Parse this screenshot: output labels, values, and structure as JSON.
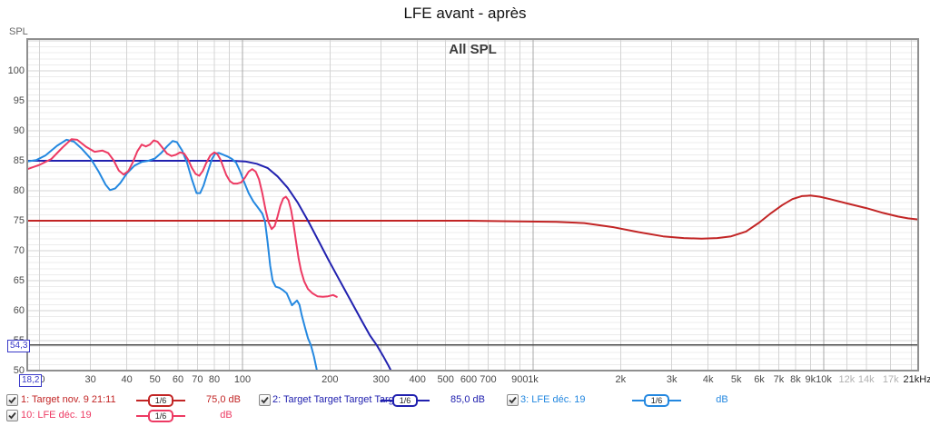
{
  "window": {
    "title": "LFE avant - après"
  },
  "plot": {
    "title": "All SPL",
    "y_axis_label": "SPL"
  },
  "cursor": {
    "freq_label": "18,2",
    "spl_label": "54,3",
    "freq_hz": 18.2,
    "spl_db": 54.3
  },
  "axes": {
    "x": {
      "scale": "log",
      "min_hz": 18.2,
      "max_hz": 21380,
      "gridlines_hz": [
        20,
        30,
        40,
        50,
        60,
        70,
        80,
        90,
        100,
        200,
        300,
        400,
        500,
        600,
        700,
        800,
        900,
        1000,
        2000,
        3000,
        4000,
        5000,
        6000,
        7000,
        8000,
        9000,
        10000,
        12000,
        14000,
        17000,
        20000
      ],
      "emphasis_hz": [
        100,
        1000,
        10000
      ],
      "ticks": [
        {
          "hz": 20,
          "label": "20",
          "shade": "normal"
        },
        {
          "hz": 30,
          "label": "30",
          "shade": "normal"
        },
        {
          "hz": 40,
          "label": "40",
          "shade": "normal"
        },
        {
          "hz": 50,
          "label": "50",
          "shade": "normal"
        },
        {
          "hz": 60,
          "label": "60",
          "shade": "normal"
        },
        {
          "hz": 70,
          "label": "70",
          "shade": "normal"
        },
        {
          "hz": 80,
          "label": "80",
          "shade": "normal"
        },
        {
          "hz": 100,
          "label": "100",
          "shade": "normal"
        },
        {
          "hz": 200,
          "label": "200",
          "shade": "normal"
        },
        {
          "hz": 300,
          "label": "300",
          "shade": "normal"
        },
        {
          "hz": 400,
          "label": "400",
          "shade": "normal"
        },
        {
          "hz": 500,
          "label": "500",
          "shade": "normal"
        },
        {
          "hz": 600,
          "label": "600",
          "shade": "normal"
        },
        {
          "hz": 700,
          "label": "700",
          "shade": "normal"
        },
        {
          "hz": 900,
          "label": "900",
          "shade": "normal"
        },
        {
          "hz": 1000,
          "label": "1k",
          "shade": "normal"
        },
        {
          "hz": 2000,
          "label": "2k",
          "shade": "normal"
        },
        {
          "hz": 3000,
          "label": "3k",
          "shade": "normal"
        },
        {
          "hz": 4000,
          "label": "4k",
          "shade": "normal"
        },
        {
          "hz": 5000,
          "label": "5k",
          "shade": "normal"
        },
        {
          "hz": 6000,
          "label": "6k",
          "shade": "normal"
        },
        {
          "hz": 7000,
          "label": "7k",
          "shade": "normal"
        },
        {
          "hz": 8000,
          "label": "8k",
          "shade": "normal"
        },
        {
          "hz": 9000,
          "label": "9k",
          "shade": "normal"
        },
        {
          "hz": 10000,
          "label": "10k",
          "shade": "normal"
        },
        {
          "hz": 12000,
          "label": "12k",
          "shade": "light"
        },
        {
          "hz": 14000,
          "label": "14k",
          "shade": "light"
        },
        {
          "hz": 17000,
          "label": "17k",
          "shade": "light"
        },
        {
          "hz": 21000,
          "label": "21kHz",
          "shade": "dark"
        }
      ]
    },
    "y": {
      "min_db": 50,
      "max_db": 105.3,
      "minor_step_db": 1,
      "major_step_db": 5,
      "ticks": [
        {
          "db": 100,
          "label": "100"
        },
        {
          "db": 95,
          "label": "95"
        },
        {
          "db": 90,
          "label": "90"
        },
        {
          "db": 85,
          "label": "85"
        },
        {
          "db": 80,
          "label": "80"
        },
        {
          "db": 75,
          "label": "75"
        },
        {
          "db": 70,
          "label": "70"
        },
        {
          "db": 65,
          "label": "65"
        },
        {
          "db": 60,
          "label": "60"
        },
        {
          "db": 55,
          "label": "55"
        },
        {
          "db": 50,
          "label": "50"
        }
      ]
    }
  },
  "chart_data": {
    "type": "line",
    "title": "All SPL",
    "ylabel": "SPL",
    "x_scale": "log",
    "xlim": [
      18.2,
      21380
    ],
    "ylim": [
      50,
      105.3
    ],
    "grid": true,
    "legend_position": "bottom",
    "series": [
      {
        "id": "1",
        "name": "Target nov. 9 21:11",
        "color": "#c22525",
        "points": [
          [
            18.2,
            75
          ],
          [
            300,
            75
          ],
          [
            600,
            75
          ],
          [
            900,
            74.9
          ],
          [
            1200,
            74.8
          ],
          [
            1500,
            74.6
          ],
          [
            1900,
            73.9
          ],
          [
            2300,
            73.1
          ],
          [
            2800,
            72.4
          ],
          [
            3300,
            72.1
          ],
          [
            3800,
            72.0
          ],
          [
            4300,
            72.1
          ],
          [
            4800,
            72.4
          ],
          [
            5400,
            73.2
          ],
          [
            6000,
            74.7
          ],
          [
            6600,
            76.3
          ],
          [
            7200,
            77.6
          ],
          [
            7800,
            78.6
          ],
          [
            8400,
            79.1
          ],
          [
            9000,
            79.2
          ],
          [
            9700,
            79.0
          ],
          [
            10500,
            78.6
          ],
          [
            12000,
            77.9
          ],
          [
            14000,
            77.1
          ],
          [
            16000,
            76.3
          ],
          [
            18000,
            75.7
          ],
          [
            19500,
            75.4
          ],
          [
            21300,
            75.2
          ]
        ]
      },
      {
        "id": "2",
        "name": "Target Target Target Target T",
        "color": "#2121af",
        "points": [
          [
            18.2,
            85
          ],
          [
            60,
            85
          ],
          [
            92,
            85
          ],
          [
            102,
            84.9
          ],
          [
            112,
            84.5
          ],
          [
            122,
            83.8
          ],
          [
            132,
            82.4
          ],
          [
            143,
            80.5
          ],
          [
            155,
            78.0
          ],
          [
            168,
            75.0
          ],
          [
            182,
            71.8
          ],
          [
            198,
            68.4
          ],
          [
            215,
            65.2
          ],
          [
            235,
            61.8
          ],
          [
            258,
            58.2
          ],
          [
            275,
            55.8
          ],
          [
            290,
            54.2
          ],
          [
            305,
            52.4
          ],
          [
            318,
            50.8
          ],
          [
            332,
            49.0
          ]
        ]
      },
      {
        "id": "3",
        "name": "LFE déc. 19",
        "color": "#2488e0",
        "points": [
          [
            18.2,
            84.9
          ],
          [
            19.5,
            85.1
          ],
          [
            21,
            85.9
          ],
          [
            23,
            87.5
          ],
          [
            24.8,
            88.5
          ],
          [
            26.3,
            88.2
          ],
          [
            28,
            87.0
          ],
          [
            30,
            85.4
          ],
          [
            32,
            83.2
          ],
          [
            33.8,
            81.0
          ],
          [
            35,
            80.1
          ],
          [
            36.5,
            80.4
          ],
          [
            38,
            81.3
          ],
          [
            40,
            82.9
          ],
          [
            42.5,
            84.2
          ],
          [
            45,
            84.8
          ],
          [
            47.5,
            85.0
          ],
          [
            50,
            85.4
          ],
          [
            52.5,
            86.3
          ],
          [
            55,
            87.4
          ],
          [
            57.5,
            88.3
          ],
          [
            59.5,
            88.1
          ],
          [
            62,
            86.7
          ],
          [
            64.5,
            84.6
          ],
          [
            67,
            81.9
          ],
          [
            69.5,
            79.6
          ],
          [
            71.5,
            79.6
          ],
          [
            73.5,
            80.9
          ],
          [
            76,
            83.2
          ],
          [
            78.5,
            85.3
          ],
          [
            80.5,
            86.2
          ],
          [
            83,
            86.3
          ],
          [
            86,
            86.0
          ],
          [
            89,
            85.7
          ],
          [
            92,
            85.3
          ],
          [
            95,
            84.7
          ],
          [
            98,
            83.3
          ],
          [
            101,
            81.6
          ],
          [
            105,
            79.6
          ],
          [
            109,
            78.2
          ],
          [
            113,
            77.2
          ],
          [
            117,
            76.2
          ],
          [
            119.5,
            74.9
          ],
          [
            122,
            71.5
          ],
          [
            124.5,
            67.5
          ],
          [
            127,
            65.0
          ],
          [
            130,
            64.0
          ],
          [
            134,
            63.8
          ],
          [
            138,
            63.4
          ],
          [
            142,
            62.9
          ],
          [
            145,
            61.9
          ],
          [
            148,
            60.9
          ],
          [
            151,
            61.3
          ],
          [
            154,
            61.7
          ],
          [
            157,
            61.0
          ],
          [
            160,
            59.2
          ],
          [
            164,
            57.2
          ],
          [
            168,
            55.4
          ],
          [
            172,
            54.2
          ],
          [
            176,
            52.4
          ],
          [
            180,
            50.2
          ],
          [
            182,
            48.8
          ]
        ]
      },
      {
        "id": "10",
        "name": "LFE déc. 19",
        "color": "#ed3a63",
        "points": [
          [
            18.2,
            83.6
          ],
          [
            20,
            84.3
          ],
          [
            22,
            85.3
          ],
          [
            24,
            87.2
          ],
          [
            25.8,
            88.6
          ],
          [
            27,
            88.5
          ],
          [
            29,
            87.3
          ],
          [
            31,
            86.5
          ],
          [
            33,
            86.7
          ],
          [
            34.5,
            86.3
          ],
          [
            36,
            85.1
          ],
          [
            37.5,
            83.4
          ],
          [
            39,
            82.7
          ],
          [
            40.5,
            83.3
          ],
          [
            42,
            84.8
          ],
          [
            43.5,
            86.6
          ],
          [
            45,
            87.7
          ],
          [
            46.5,
            87.4
          ],
          [
            48,
            87.7
          ],
          [
            49.5,
            88.4
          ],
          [
            51,
            88.2
          ],
          [
            53,
            87.2
          ],
          [
            55,
            86.2
          ],
          [
            57,
            85.8
          ],
          [
            59,
            86.0
          ],
          [
            61,
            86.4
          ],
          [
            63,
            86.2
          ],
          [
            65,
            85.2
          ],
          [
            67,
            83.8
          ],
          [
            69,
            82.8
          ],
          [
            71,
            82.5
          ],
          [
            73,
            83.3
          ],
          [
            75,
            84.6
          ],
          [
            77.5,
            85.9
          ],
          [
            80,
            86.4
          ],
          [
            82,
            86.1
          ],
          [
            84,
            85.2
          ],
          [
            86,
            83.9
          ],
          [
            88,
            82.6
          ],
          [
            90.5,
            81.6
          ],
          [
            93,
            81.2
          ],
          [
            96,
            81.2
          ],
          [
            99,
            81.4
          ],
          [
            102,
            82.2
          ],
          [
            105,
            83.2
          ],
          [
            108,
            83.6
          ],
          [
            111,
            83.2
          ],
          [
            114,
            81.9
          ],
          [
            117,
            79.6
          ],
          [
            120,
            76.9
          ],
          [
            123,
            74.7
          ],
          [
            126,
            73.6
          ],
          [
            129,
            74.1
          ],
          [
            132,
            75.7
          ],
          [
            135,
            77.5
          ],
          [
            138,
            78.7
          ],
          [
            141,
            79.0
          ],
          [
            144,
            78.4
          ],
          [
            147,
            76.8
          ],
          [
            150,
            74.3
          ],
          [
            153,
            71.4
          ],
          [
            156,
            68.7
          ],
          [
            159,
            66.7
          ],
          [
            163,
            64.9
          ],
          [
            168,
            63.6
          ],
          [
            174,
            62.9
          ],
          [
            181,
            62.4
          ],
          [
            189,
            62.3
          ],
          [
            197,
            62.4
          ],
          [
            205,
            62.6
          ],
          [
            211,
            62.3
          ]
        ]
      }
    ]
  },
  "legend": {
    "entries": [
      {
        "id": "1",
        "label": "1: Target nov. 9 21:11",
        "smoothing": "1/6",
        "value": "75,0 dB",
        "color": "#c22525",
        "checked": true
      },
      {
        "id": "2",
        "label": "2: Target Target Target Target T",
        "smoothing": "1/6",
        "value": "85,0 dB",
        "color": "#2121af",
        "checked": true
      },
      {
        "id": "3",
        "label": "3: LFE déc. 19",
        "smoothing": "1/6",
        "value": "dB",
        "color": "#2488e0",
        "checked": true
      },
      {
        "id": "10",
        "label": "10: LFE déc. 19",
        "smoothing": "1/6",
        "value": "dB",
        "color": "#ed3a63",
        "checked": true
      }
    ]
  }
}
